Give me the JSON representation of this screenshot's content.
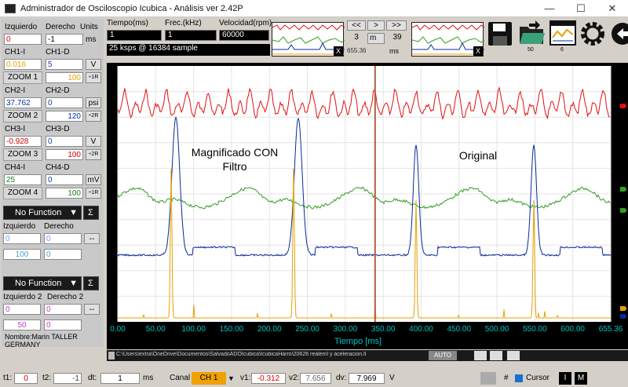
{
  "window": {
    "title": "Administrador de Osciloscopio Icubica - Análisis ver 2.42P",
    "minimize": "—",
    "maximize": "☐",
    "close": "✕"
  },
  "left_panel": {
    "headers": {
      "izquierdo": "Izquierdo",
      "derecho": "Derecho",
      "units": "Units"
    },
    "row0": {
      "izq": "0",
      "der": "-1",
      "unit": "ms"
    },
    "channels": [
      {
        "l_label": "CH1-I",
        "r_label": "CH1-D",
        "l_val": "0.016",
        "r_val": "5",
        "unit": "V",
        "zoom": "ZOOM 1",
        "zoom_val": "100",
        "btn": "÷1R",
        "color": "#e8a000"
      },
      {
        "l_label": "CH2-I",
        "r_label": "CH2-D",
        "l_val": "37.762",
        "r_val": "0",
        "unit": "psi",
        "zoom": "ZOOM 2",
        "zoom_val": "120",
        "btn": "÷2R",
        "color": "#0030a0"
      },
      {
        "l_label": "CH3-I",
        "r_label": "CH3-D",
        "l_val": "-0.928",
        "r_val": "0",
        "unit": "V",
        "zoom": "ZOOM 3",
        "zoom_val": "100",
        "btn": "÷2R",
        "color": "#d00000"
      },
      {
        "l_label": "CH4-I",
        "r_label": "CH4-D",
        "l_val": "25",
        "r_val": "0",
        "unit": "mV",
        "zoom": "ZOOM 4",
        "zoom_val": "100",
        "btn": "÷1R",
        "color": "#208020"
      }
    ],
    "fn1": {
      "label": "No Function",
      "sigma": "Σ",
      "izq_label": "Izquierdo",
      "der_label": "Derecho",
      "izq": "0",
      "der": "0",
      "dash": "--",
      "v1": "100",
      "v2": "0"
    },
    "fn2": {
      "label": "No Function",
      "sigma": "Σ",
      "izq_label": "Izquierdo 2",
      "der_label": "Derecho 2",
      "izq": "0",
      "der": "0",
      "dash": "--",
      "v1": "50",
      "v2": "0"
    },
    "footer": "Nombre:Marin TALLER GERMANY"
  },
  "top": {
    "tiempo_label": "Tiempo(ms)",
    "frec_label": "Frec.(kHz)",
    "vel_label": "Velocidad(rpm)",
    "tiempo": "1",
    "frec": "1",
    "vel": "60000",
    "sample": "25 ksps @ 16384 sample",
    "nav": {
      "prev2": "<<",
      "next": ">",
      "next2": ">>",
      "left_num": "3",
      "unit_m": "m",
      "right_num": "39",
      "val": "655.36",
      "unit_ms": "ms"
    },
    "thumb_close": "X",
    "icon_small1": "50",
    "icon_small2": "6"
  },
  "plot": {
    "annotation_left": "Magnificado CON\nFiltro",
    "annotation_right": "Original",
    "xlabel": "Tiempo [ms]",
    "xticks": [
      "0.00",
      "50.00",
      "100.00",
      "150.00",
      "200.00",
      "250.00",
      "300.00",
      "350.00",
      "400.00",
      "450.00",
      "500.00",
      "550.00",
      "600.00",
      "655.36"
    ]
  },
  "path_bar": {
    "path": "C:\\Users\\extra\\OneDrive\\Documentos\\SalvadoADOIcubica\\IcubicaHarro\\20626 realeml y aceleracion.ll",
    "auto": "AUTO"
  },
  "bottom": {
    "t1_label": "t1:",
    "t1": "0",
    "t2_label": "t2:",
    "t2": "-1",
    "dt_label": "dt:",
    "dt": "1",
    "dt_unit": "ms",
    "canal_label": "Canal",
    "canal": "CH 1",
    "v1_label": "v1:",
    "v1": "-0.312",
    "v2_label": "v2:",
    "v2": "7.656",
    "dv_label": "dv:",
    "dv": "7.969",
    "unit": "V",
    "hash": "#",
    "cursor": "Cursor",
    "btn_i": "I",
    "btn_m": "M"
  },
  "colors": {
    "ch1": "#e8a000",
    "ch2": "#0a2a9a",
    "ch3": "#e01010",
    "ch4": "#30a020",
    "axis_text": "#00c0c0",
    "plot_bg": "#ffffff"
  }
}
